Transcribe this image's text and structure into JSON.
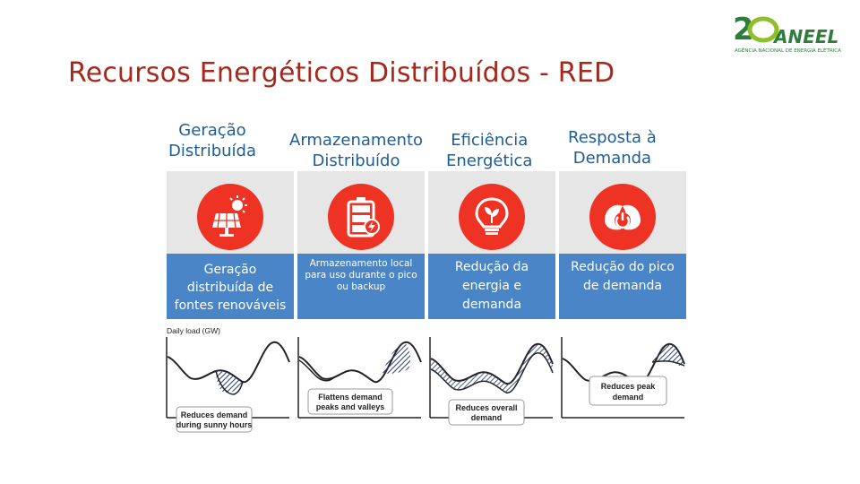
{
  "slide": {
    "title": "Recursos Energéticos Distribuídos - RED"
  },
  "logo": {
    "number": "20",
    "brand": "ANEEL",
    "tagline": "Agência Nacional de Energia Elétrica"
  },
  "columns": [
    {
      "heading_line1": "Geração",
      "heading_line2": "Distribuída",
      "icon": "solar-panel-icon",
      "description": "Geração distribuída de fontes renováveis",
      "chart_note": "Reduces demand during sunny hours",
      "axis_label": "Daily load (GW)"
    },
    {
      "heading_line1": "Armazenamento",
      "heading_line2": "Distribuído",
      "icon": "battery-icon",
      "description": "Armazenamento local para uso durante o pico ou backup",
      "chart_note": "Flattens demand peaks and valleys"
    },
    {
      "heading_line1": "Eficiência",
      "heading_line2": "Energética",
      "icon": "lightbulb-leaf-icon",
      "description": "Redução da energia e demanda",
      "chart_note": "Reduces overall demand"
    },
    {
      "heading_line1": "Resposta à",
      "heading_line2": "Demanda",
      "icon": "power-leaf-icon",
      "description": "Redução do pico de demanda",
      "chart_note": "Reduces peak demand"
    }
  ],
  "colors": {
    "title": "#a5281b",
    "heading": "#1f5d94",
    "icon_bg": "#ee3224",
    "box_bg": "#4a86c7",
    "panel_bg": "#e6e6e6"
  }
}
